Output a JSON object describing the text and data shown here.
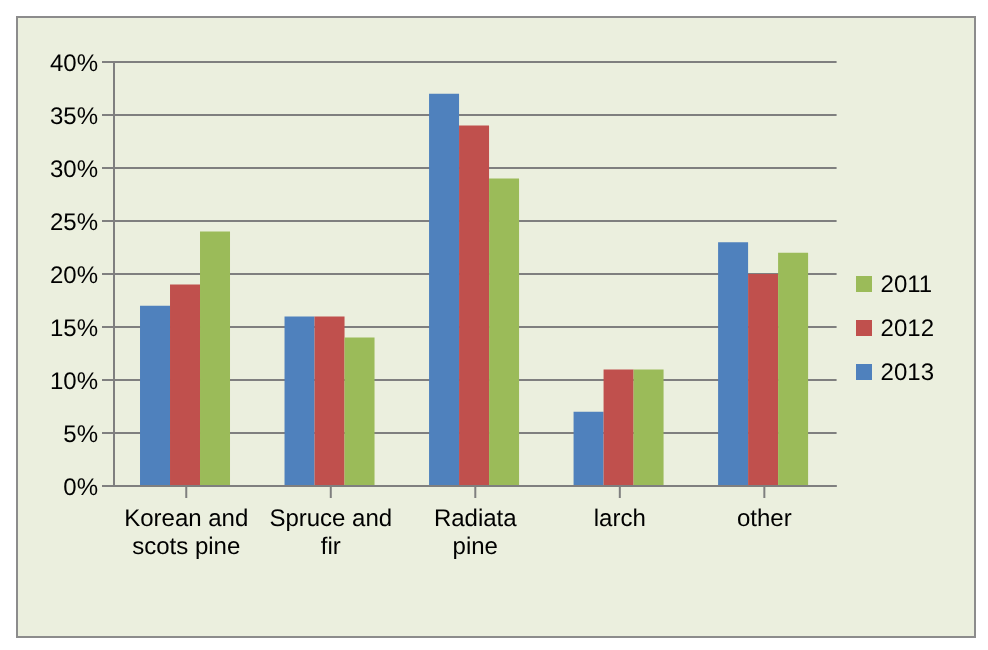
{
  "chart_data": {
    "type": "bar",
    "categories": [
      "Korean and scots pine",
      "Spruce and fir",
      "Radiata pine",
      "larch",
      "other"
    ],
    "series": [
      {
        "name": "2013",
        "color": "#4f81bd",
        "values": [
          17,
          16,
          37,
          7,
          23
        ]
      },
      {
        "name": "2012",
        "color": "#c0504d",
        "values": [
          19,
          16,
          34,
          11,
          20
        ]
      },
      {
        "name": "2011",
        "color": "#9bbb59",
        "values": [
          24,
          14,
          29,
          11,
          22
        ]
      }
    ],
    "ylim": [
      0,
      40
    ],
    "yticks": [
      {
        "value": 0,
        "label": "0%"
      },
      {
        "value": 5,
        "label": "5%"
      },
      {
        "value": 10,
        "label": "10%"
      },
      {
        "value": 15,
        "label": "15%"
      },
      {
        "value": 20,
        "label": "20%"
      },
      {
        "value": 25,
        "label": "25%"
      },
      {
        "value": 30,
        "label": "30%"
      },
      {
        "value": 35,
        "label": "35%"
      },
      {
        "value": 40,
        "label": "40%"
      }
    ],
    "grid": "y",
    "legend": "right"
  }
}
